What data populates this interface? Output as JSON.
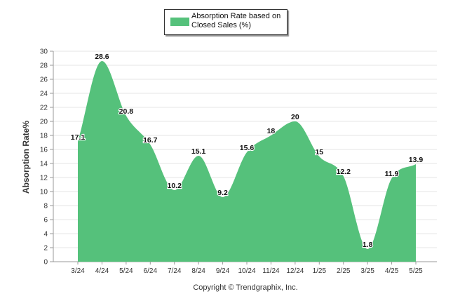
{
  "legend": {
    "label": "Absorption Rate based on Closed Sales (%)"
  },
  "colors": {
    "series_fill": "#55c17b",
    "grid": "#e6e6e6",
    "axis_text": "#333333"
  },
  "footer": {
    "copyright": "Copyright © Trendgraphix, Inc."
  },
  "chart_data": {
    "type": "area",
    "title": "",
    "ylabel": "Absorption Rate%",
    "xlabel": "",
    "ylim": [
      0,
      30
    ],
    "yticks": [
      0,
      2,
      4,
      6,
      8,
      10,
      12,
      14,
      16,
      18,
      20,
      22,
      24,
      26,
      28,
      30
    ],
    "grid": true,
    "legend_position": "top-center",
    "categories": [
      "3/24",
      "4/24",
      "5/24",
      "6/24",
      "7/24",
      "8/24",
      "9/24",
      "10/24",
      "11/24",
      "12/24",
      "1/25",
      "2/25",
      "3/25",
      "4/25",
      "5/25"
    ],
    "series": [
      {
        "name": "Absorption Rate based on Closed Sales (%)",
        "values": [
          17.1,
          28.6,
          20.8,
          16.7,
          10.2,
          15.1,
          9.2,
          15.6,
          18,
          20,
          15,
          12.2,
          1.8,
          11.9,
          13.9
        ],
        "labels": [
          "17.1",
          "28.6",
          "20.8",
          "16.7",
          "10.2",
          "15.1",
          "9.2",
          "15.6",
          "18",
          "20",
          "15",
          "12.2",
          "1.8",
          "11.9",
          "13.9"
        ]
      }
    ]
  }
}
